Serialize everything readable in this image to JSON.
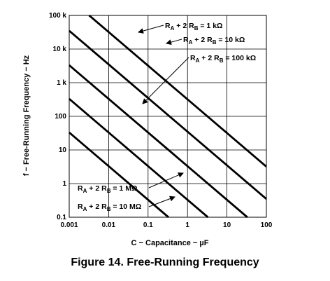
{
  "caption": "Figure 14.  Free-Running Frequency",
  "chart_data": {
    "type": "line",
    "x_scale": "log",
    "y_scale": "log",
    "xlim": [
      0.001,
      100
    ],
    "ylim": [
      0.1,
      100000
    ],
    "grid": true,
    "xlabel": "C − Capacitance − µF",
    "ylabel": "f − Free-Running Frequency − Hz",
    "x_ticks": [
      {
        "value": 0.001,
        "label": "0.001"
      },
      {
        "value": 0.01,
        "label": "0.01"
      },
      {
        "value": 0.1,
        "label": "0.1"
      },
      {
        "value": 1,
        "label": "1"
      },
      {
        "value": 10,
        "label": "10"
      },
      {
        "value": 100,
        "label": "100"
      }
    ],
    "y_ticks": [
      {
        "value": 100000,
        "label": "100 k"
      },
      {
        "value": 10000,
        "label": "10 k"
      },
      {
        "value": 1000,
        "label": "1 k"
      },
      {
        "value": 100,
        "label": "100"
      },
      {
        "value": 10,
        "label": "10"
      },
      {
        "value": 1,
        "label": "1"
      },
      {
        "value": 0.1,
        "label": "0.1"
      }
    ],
    "series": [
      {
        "name": "RA + 2 RB = 1 kΩ",
        "x": [
          0.0032,
          100
        ],
        "y": [
          100000,
          3.2
        ]
      },
      {
        "name": "RA + 2 RB = 10 kΩ",
        "x": [
          0.001,
          100
        ],
        "y": [
          35000,
          0.35
        ]
      },
      {
        "name": "RA + 2 RB = 100 kΩ",
        "x": [
          0.001,
          33
        ],
        "y": [
          3300,
          0.1
        ]
      },
      {
        "name": "RA + 2 RB = 1 MΩ",
        "x": [
          0.001,
          3.3
        ],
        "y": [
          330,
          0.1
        ]
      },
      {
        "name": "RA + 2 RB = 10 MΩ",
        "x": [
          0.001,
          0.33
        ],
        "y": [
          33,
          0.1
        ]
      }
    ],
    "annotations": [
      {
        "pre": "R",
        "s1": "A",
        "mid": " + 2 R",
        "s2": "B",
        "post": " = 1 kΩ"
      },
      {
        "pre": "R",
        "s1": "A",
        "mid": " + 2 R",
        "s2": "B",
        "post": " = 10 kΩ"
      },
      {
        "pre": "R",
        "s1": "A",
        "mid": " + 2 R",
        "s2": "B",
        "post": " = 100 kΩ"
      },
      {
        "pre": "R",
        "s1": "A",
        "mid": " + 2 R",
        "s2": "B",
        "post": " = 1 MΩ"
      },
      {
        "pre": "R",
        "s1": "A",
        "mid": " + 2 R",
        "s2": "B",
        "post": " = 10 MΩ"
      }
    ]
  }
}
